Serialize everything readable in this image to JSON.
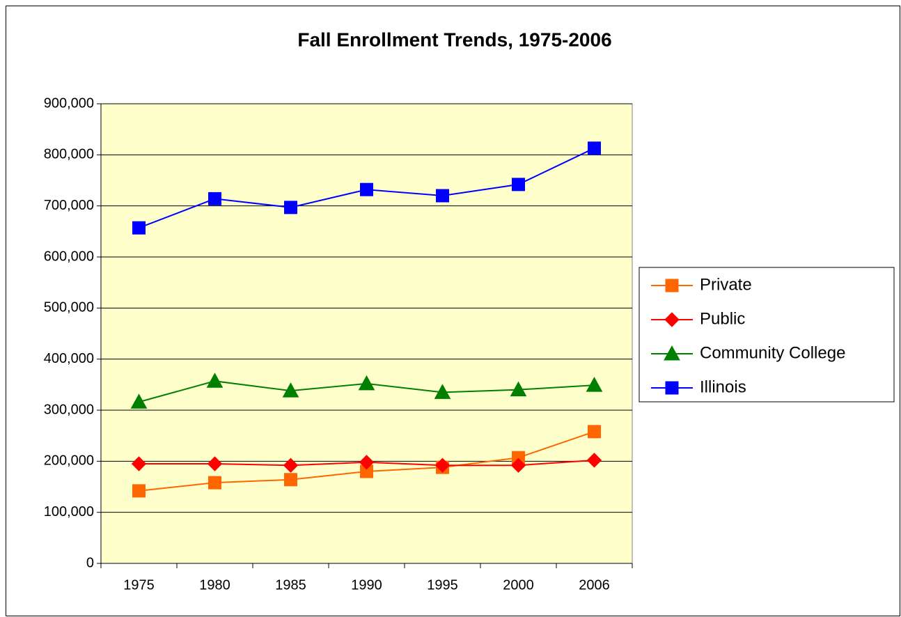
{
  "chart_data": {
    "type": "line",
    "title": "Fall Enrollment Trends, 1975-2006",
    "categories": [
      "1975",
      "1980",
      "1985",
      "1990",
      "1995",
      "2000",
      "2006"
    ],
    "series": [
      {
        "name": "Private",
        "color": "#ff6600",
        "marker": "square",
        "values": [
          142000,
          158000,
          164000,
          180000,
          188000,
          207000,
          258000
        ]
      },
      {
        "name": "Public",
        "color": "#ff0000",
        "marker": "diamond",
        "values": [
          195000,
          195000,
          192000,
          198000,
          192000,
          192000,
          202000
        ]
      },
      {
        "name": "Community College",
        "color": "#008000",
        "marker": "triangle",
        "values": [
          316000,
          357000,
          338000,
          352000,
          335000,
          340000,
          349000
        ]
      },
      {
        "name": "Illinois",
        "color": "#0000ff",
        "marker": "square",
        "values": [
          657000,
          714000,
          697000,
          732000,
          720000,
          742000,
          813000
        ]
      }
    ],
    "ylim": [
      0,
      900000
    ],
    "yticks": [
      0,
      {
        "value": 100000,
        "label": "100,000"
      },
      {
        "value": 200000,
        "label": "200,000"
      },
      {
        "value": 300000,
        "label": "300,000"
      },
      {
        "value": 400000,
        "label": "400,000"
      },
      {
        "value": 500000,
        "label": "500,000"
      },
      {
        "value": 600000,
        "label": "600,000"
      },
      {
        "value": 700000,
        "label": "700,000"
      },
      {
        "value": 800000,
        "label": "800,000"
      },
      {
        "value": 900000,
        "label": "900,000"
      }
    ],
    "grid": true,
    "plot_background": "#ffffcc",
    "legend": "right"
  }
}
